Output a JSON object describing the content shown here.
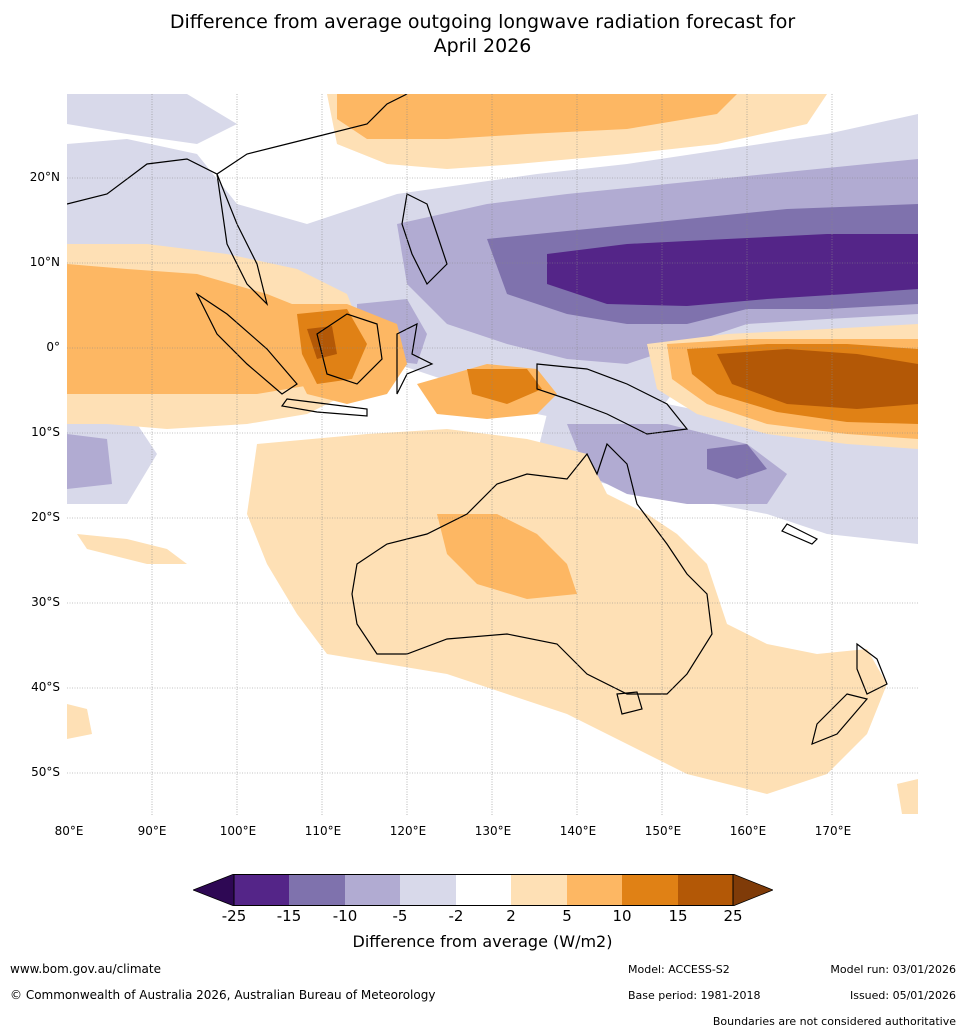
{
  "title_line1": "Difference from average outgoing longwave radiation forecast for",
  "title_line2": "April 2026",
  "lat_labels": [
    "20°N",
    "10°N",
    "0°",
    "10°S",
    "20°S",
    "30°S",
    "40°S",
    "50°S"
  ],
  "lon_labels": [
    "80°E",
    "90°E",
    "100°E",
    "110°E",
    "120°E",
    "130°E",
    "140°E",
    "150°E",
    "160°E",
    "170°E"
  ],
  "colorbar": {
    "ticks": [
      "-25",
      "-15",
      "-10",
      "-5",
      "-2",
      "2",
      "5",
      "10",
      "15",
      "25"
    ],
    "colors": {
      "under": "#2e0854",
      "n25_15": "#542588",
      "n15_10": "#7f72ad",
      "n10_5": "#b1abd2",
      "n5_2": "#d8d9ea",
      "n2_2": "#ffffff",
      "p2_5": "#fee0b5",
      "p5_10": "#fdb763",
      "p10_15": "#e08115",
      "p15_25": "#b35806",
      "over": "#7f3b08"
    },
    "title": "Difference from average (W/m2)"
  },
  "footer": {
    "website": "www.bom.gov.au/climate",
    "copyright": "© Commonwealth of Australia 2026, Australian Bureau of Meteorology",
    "model": "Model: ACCESS-S2",
    "base_period": "Base period: 1981-2018",
    "model_run": "Model run: 03/01/2026",
    "issued": "Issued: 05/01/2026",
    "disclaimer": "Boundaries are not considered authoritative"
  }
}
